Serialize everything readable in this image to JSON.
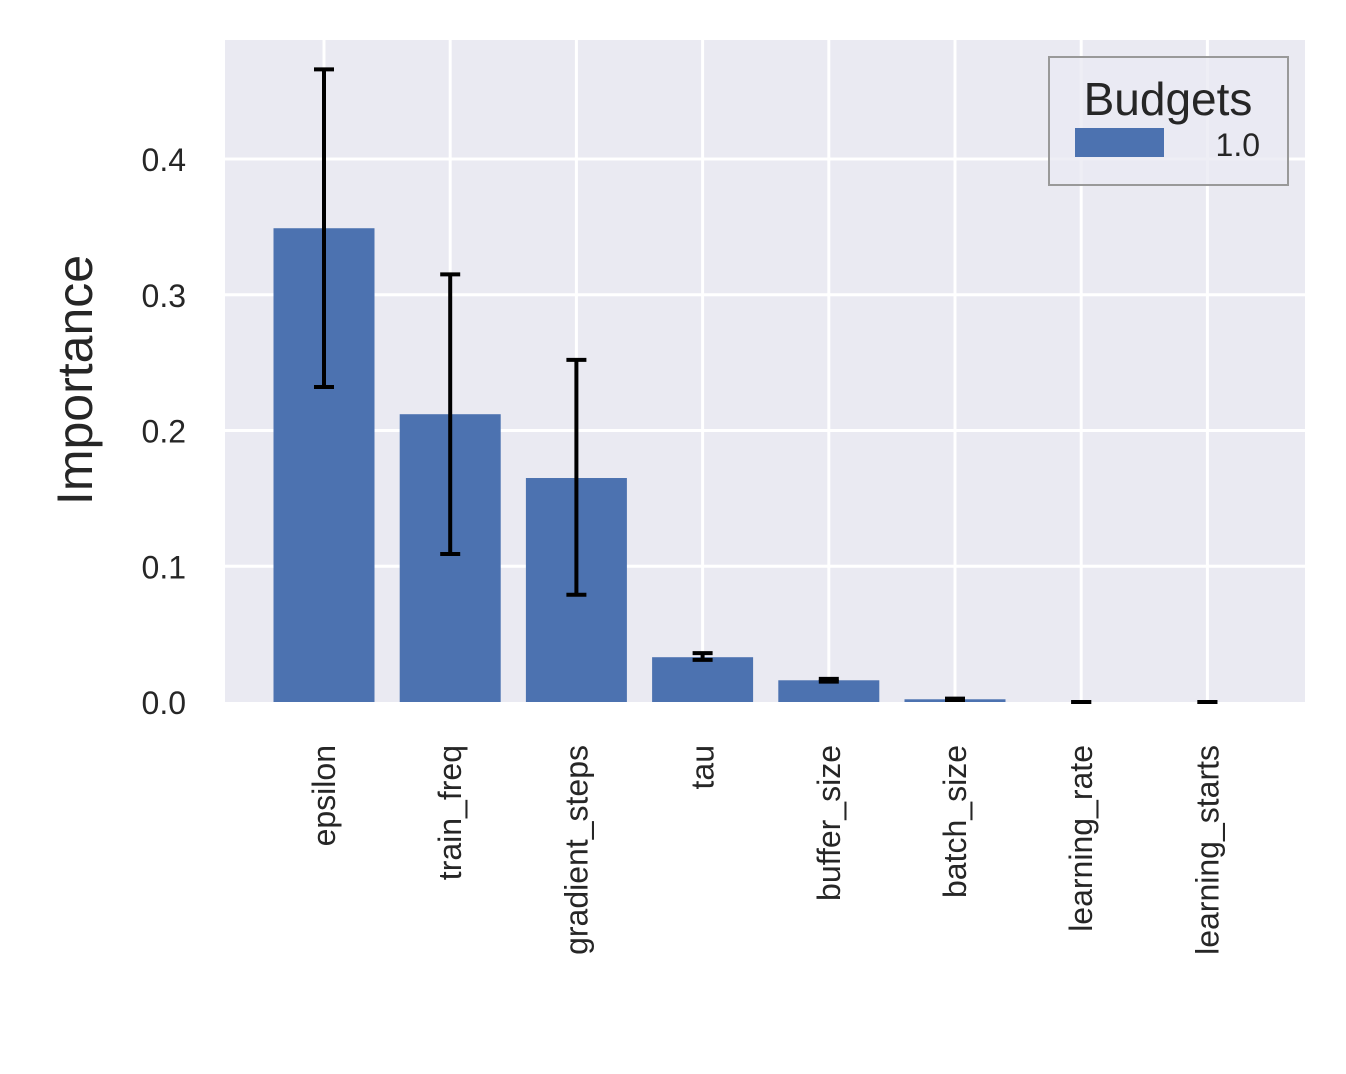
{
  "chart_data": {
    "type": "bar",
    "categories": [
      "epsilon",
      "train_freq",
      "gradient_steps",
      "tau",
      "buffer_size",
      "batch_size",
      "learning_rate",
      "learning_starts"
    ],
    "series": [
      {
        "name": "1.0",
        "values": [
          0.349,
          0.212,
          0.165,
          0.033,
          0.016,
          0.002,
          0.0,
          0.0
        ],
        "error_low": [
          0.232,
          0.109,
          0.079,
          0.031,
          0.015,
          0.0015,
          0.0,
          0.0
        ],
        "error_high": [
          0.466,
          0.315,
          0.252,
          0.036,
          0.017,
          0.0025,
          0.0,
          0.0
        ],
        "color": "#4c72b0"
      }
    ],
    "xlabel": "",
    "ylabel": "Importance",
    "ylim": [
      0,
      0.487
    ],
    "yticks": [
      0.0,
      0.1,
      0.2,
      0.3,
      0.4
    ],
    "ytick_labels": [
      "0.0",
      "0.1",
      "0.2",
      "0.3",
      "0.4"
    ],
    "grid": true,
    "legend": {
      "title": "Budgets",
      "placement": "top-right"
    },
    "colors": {
      "plot_background": "#eaeaf2",
      "grid": "#ffffff",
      "error_bar": "#000000"
    }
  }
}
